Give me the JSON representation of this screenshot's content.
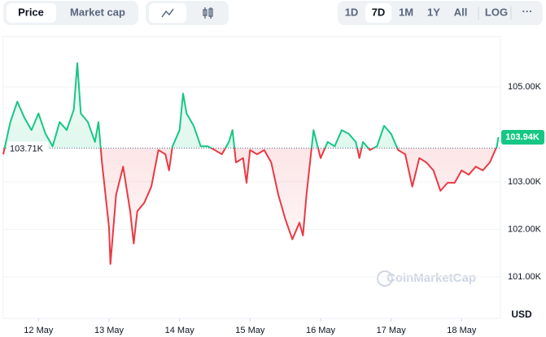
{
  "toolbar": {
    "tabs": [
      "Price",
      "Market cap"
    ],
    "ranges": [
      "1D",
      "7D",
      "1M",
      "1Y",
      "All",
      "LOG"
    ],
    "more": "···"
  },
  "watermark": "CoinMarketCap",
  "chart_data": {
    "type": "line",
    "y_unit_label": "USD",
    "x": [
      -0.5,
      -0.4,
      -0.3,
      -0.2,
      -0.1,
      0,
      0.1,
      0.2,
      0.3,
      0.4,
      0.5,
      0.55,
      0.6,
      0.7,
      0.8,
      0.85,
      0.9,
      1.0,
      1.02,
      1.1,
      1.2,
      1.3,
      1.35,
      1.4,
      1.5,
      1.6,
      1.7,
      1.8,
      1.85,
      1.9,
      2.0,
      2.05,
      2.1,
      2.2,
      2.3,
      2.4,
      2.5,
      2.6,
      2.7,
      2.75,
      2.8,
      2.9,
      2.95,
      3.0,
      3.1,
      3.2,
      3.3,
      3.4,
      3.5,
      3.6,
      3.7,
      3.75,
      3.8,
      3.85,
      3.9,
      4.0,
      4.1,
      4.2,
      4.3,
      4.4,
      4.5,
      4.55,
      4.6,
      4.7,
      4.8,
      4.9,
      5.0,
      5.1,
      5.2,
      5.3,
      5.4,
      5.5,
      5.6,
      5.7,
      5.8,
      5.9,
      6.0,
      6.1,
      6.2,
      6.3,
      6.4,
      6.5,
      6.52
    ],
    "series": [
      {
        "name": "Price",
        "up_color": "#16c784",
        "down_color": "#ea3943",
        "values": [
          103.58,
          104.26,
          104.69,
          104.35,
          104.09,
          104.44,
          104.01,
          103.75,
          104.26,
          104.09,
          104.52,
          105.5,
          104.44,
          104.26,
          103.84,
          104.26,
          103.41,
          102.04,
          101.27,
          102.73,
          103.32,
          102.38,
          101.7,
          102.38,
          102.56,
          102.9,
          103.67,
          103.58,
          103.24,
          103.75,
          104.09,
          104.86,
          104.44,
          104.18,
          103.75,
          103.75,
          103.67,
          103.58,
          103.84,
          104.09,
          103.41,
          103.5,
          102.98,
          103.67,
          103.58,
          103.67,
          103.41,
          102.73,
          102.21,
          101.79,
          102.14,
          101.87,
          102.73,
          103.41,
          104.09,
          103.5,
          103.84,
          103.75,
          104.09,
          104.01,
          103.84,
          103.5,
          103.84,
          103.67,
          103.75,
          104.18,
          104.01,
          103.67,
          103.58,
          102.9,
          103.5,
          103.41,
          103.24,
          102.81,
          102.98,
          102.98,
          103.24,
          103.15,
          103.32,
          103.24,
          103.41,
          103.75,
          103.94
        ]
      }
    ],
    "baseline": {
      "value": 103.71,
      "label": "103.71K"
    },
    "last_price": {
      "value": 103.94,
      "label": "103.94K"
    },
    "xlim": [
      -0.5,
      6.55
    ],
    "xticks": [
      {
        "value": 0,
        "label": "12 May"
      },
      {
        "value": 1,
        "label": "13 May"
      },
      {
        "value": 2,
        "label": "14 May"
      },
      {
        "value": 3,
        "label": "15 May"
      },
      {
        "value": 4,
        "label": "16 May"
      },
      {
        "value": 5,
        "label": "17 May"
      },
      {
        "value": 6,
        "label": "18 May"
      }
    ],
    "ylim": [
      100.16,
      106.06
    ],
    "yticks": [
      {
        "value": 101,
        "label": "101.00K"
      },
      {
        "value": 102,
        "label": "102.00K"
      },
      {
        "value": 103,
        "label": "103.00K"
      },
      {
        "value": 105,
        "label": "105.00K"
      }
    ],
    "grid": true
  }
}
